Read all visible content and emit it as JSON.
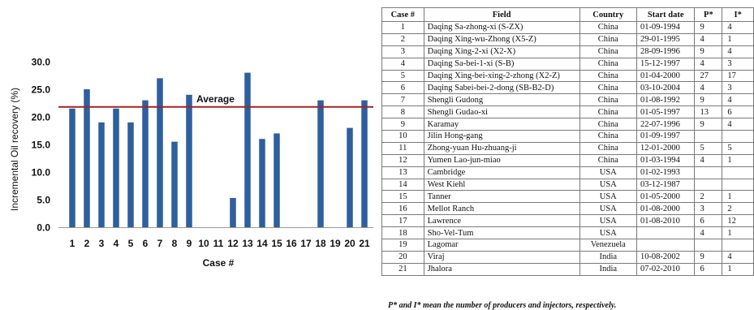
{
  "chart_data": {
    "type": "bar",
    "categories": [
      "1",
      "2",
      "3",
      "4",
      "5",
      "6",
      "7",
      "8",
      "9",
      "10",
      "11",
      "12",
      "13",
      "14",
      "15",
      "16",
      "17",
      "18",
      "19",
      "20",
      "21"
    ],
    "values": [
      21.5,
      25,
      19,
      21.5,
      19,
      23,
      27,
      15.5,
      24,
      null,
      null,
      5.3,
      28,
      16,
      17,
      null,
      null,
      23,
      null,
      18,
      23
    ],
    "reference_line": {
      "label": "Average",
      "value": 21.8,
      "color": "#a32423"
    },
    "xlabel": "Case #",
    "ylabel": "Incremental Oil recovery (%)",
    "ylim": [
      0,
      30
    ],
    "yticks": [
      "0.0",
      "5.0",
      "10.0",
      "15.0",
      "20.0",
      "25.0",
      "30.0"
    ],
    "grid": false,
    "bar_color": "#2e5f9e"
  },
  "table": {
    "headers": [
      "Case #",
      "Field",
      "Country",
      "Start date",
      "P*",
      "I*"
    ],
    "rows": [
      [
        "1",
        "Daqing Sa-zhong-xi (S-ZX)",
        "China",
        "01-09-1994",
        "9",
        "4"
      ],
      [
        "2",
        "Daqing Xing-wu-Zhong (X5-Z)",
        "China",
        "29-01-1995",
        "4",
        "1"
      ],
      [
        "3",
        "Daqing Xing-2-xi (X2-X)",
        "China",
        "28-09-1996",
        "9",
        "4"
      ],
      [
        "4",
        "Daqing Sa-bei-1-xi (S-B)",
        "China",
        "15-12-1997",
        "4",
        "3"
      ],
      [
        "5",
        "Daqing Xing-bei-xing-2-zhong (X2-Z)",
        "China",
        "01-04-2000",
        "27",
        "17"
      ],
      [
        "6",
        "Daqing Sabei-bei-2-dong (SB-B2-D)",
        "China",
        "03-10-2004",
        "4",
        "3"
      ],
      [
        "7",
        "Shengli Gudong",
        "China",
        "01-08-1992",
        "9",
        "4"
      ],
      [
        "8",
        "Shengli Gudao-xi",
        "China",
        "01-05-1997",
        "13",
        "6"
      ],
      [
        "9",
        "Karamay",
        "China",
        "22-07-1996",
        "9",
        "4"
      ],
      [
        "10",
        "Jilin Hong-gang",
        "China",
        "01-09-1997",
        "",
        ""
      ],
      [
        "11",
        "Zhong-yuan Hu-zhuang-ji",
        "China",
        "12-01-2000",
        "5",
        "5"
      ],
      [
        "12",
        "Yumen Lao-jun-miao",
        "China",
        "01-03-1994",
        "4",
        "1"
      ],
      [
        "13",
        "Cambridge",
        "USA",
        "01-02-1993",
        "",
        ""
      ],
      [
        "14",
        "West Kiehl",
        "USA",
        "03-12-1987",
        "",
        ""
      ],
      [
        "15",
        "Tanner",
        "USA",
        "01-05-2000",
        "2",
        "1"
      ],
      [
        "16",
        "Mellot Ranch",
        "USA",
        "01-08-2000",
        "3",
        "2"
      ],
      [
        "17",
        "Lawrence",
        "USA",
        "01-08-2010",
        "6",
        "12"
      ],
      [
        "18",
        "Sho-Vel-Tum",
        "USA",
        "",
        "4",
        "1"
      ],
      [
        "19",
        "Lagomar",
        "Venezuela",
        "",
        "",
        ""
      ],
      [
        "20",
        "Viraj",
        "India",
        "10-08-2002",
        "9",
        "4"
      ],
      [
        "21",
        "Jhalora",
        "India",
        "07-02-2010",
        "6",
        "1"
      ]
    ],
    "footnote": "P* and I* mean the number of producers and injectors, respectively."
  }
}
